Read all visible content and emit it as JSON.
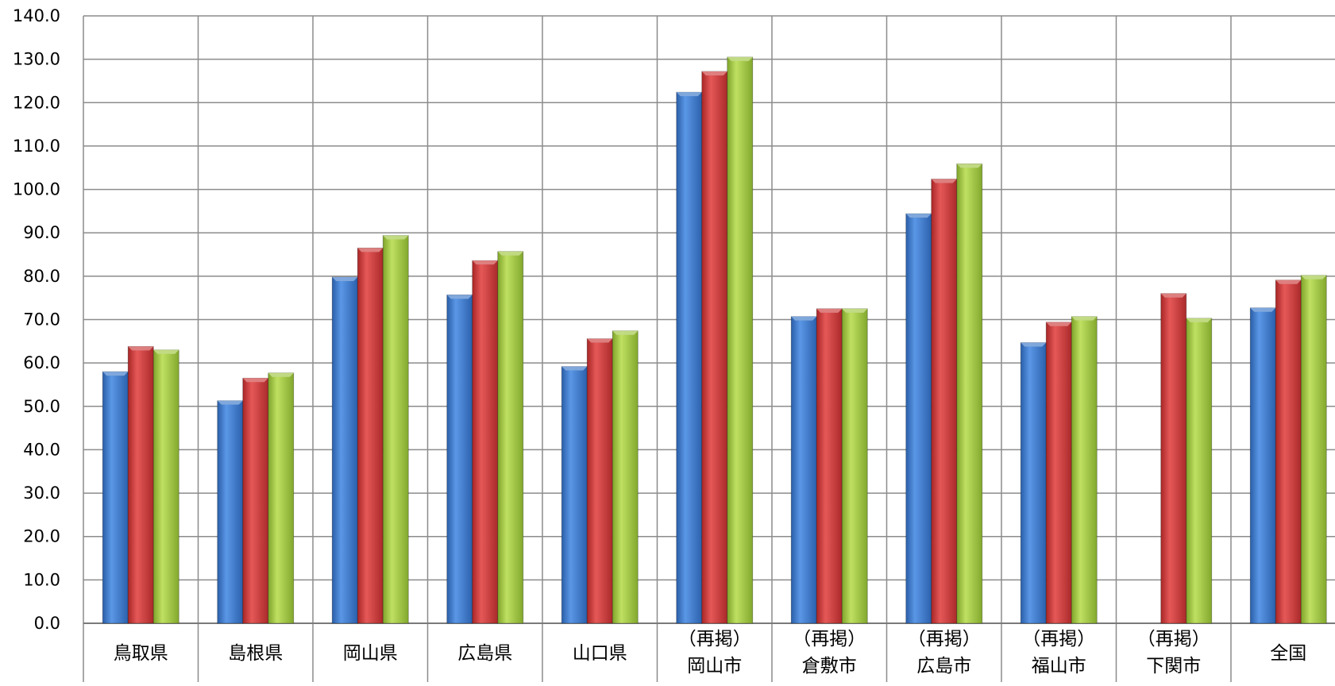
{
  "chart_data": {
    "type": "bar",
    "title": "",
    "xlabel": "",
    "ylabel": "",
    "ylim": [
      0,
      140
    ],
    "ytick_step": 10,
    "ytick_labels": [
      "0.0",
      "10.0",
      "20.0",
      "30.0",
      "40.0",
      "50.0",
      "60.0",
      "70.0",
      "80.0",
      "90.0",
      "100.0",
      "110.0",
      "120.0",
      "130.0",
      "140.0"
    ],
    "grid": true,
    "legend": "none",
    "categories": [
      [
        "鳥取県"
      ],
      [
        "島根県"
      ],
      [
        "岡山県"
      ],
      [
        "広島県"
      ],
      [
        "山口県"
      ],
      [
        "（再掲）",
        "岡山市"
      ],
      [
        "（再掲）",
        "倉敷市"
      ],
      [
        "（再掲）",
        "広島市"
      ],
      [
        "（再掲）",
        "福山市"
      ],
      [
        "（再掲）",
        "下関市"
      ],
      [
        "全国"
      ]
    ],
    "series": [
      {
        "color": "#3b78c9",
        "values": [
          58.0,
          51.3,
          79.8,
          75.7,
          59.2,
          122.4,
          70.7,
          94.4,
          64.7,
          null,
          72.7
        ]
      },
      {
        "color": "#cc3a3a",
        "values": [
          63.8,
          56.5,
          86.5,
          83.6,
          65.6,
          127.2,
          72.5,
          102.4,
          69.4,
          76.0,
          79.1
        ]
      },
      {
        "color": "#9fc63f",
        "values": [
          63.0,
          57.7,
          89.4,
          85.7,
          67.4,
          130.5,
          72.5,
          105.9,
          70.7,
          70.3,
          80.2
        ]
      }
    ]
  }
}
